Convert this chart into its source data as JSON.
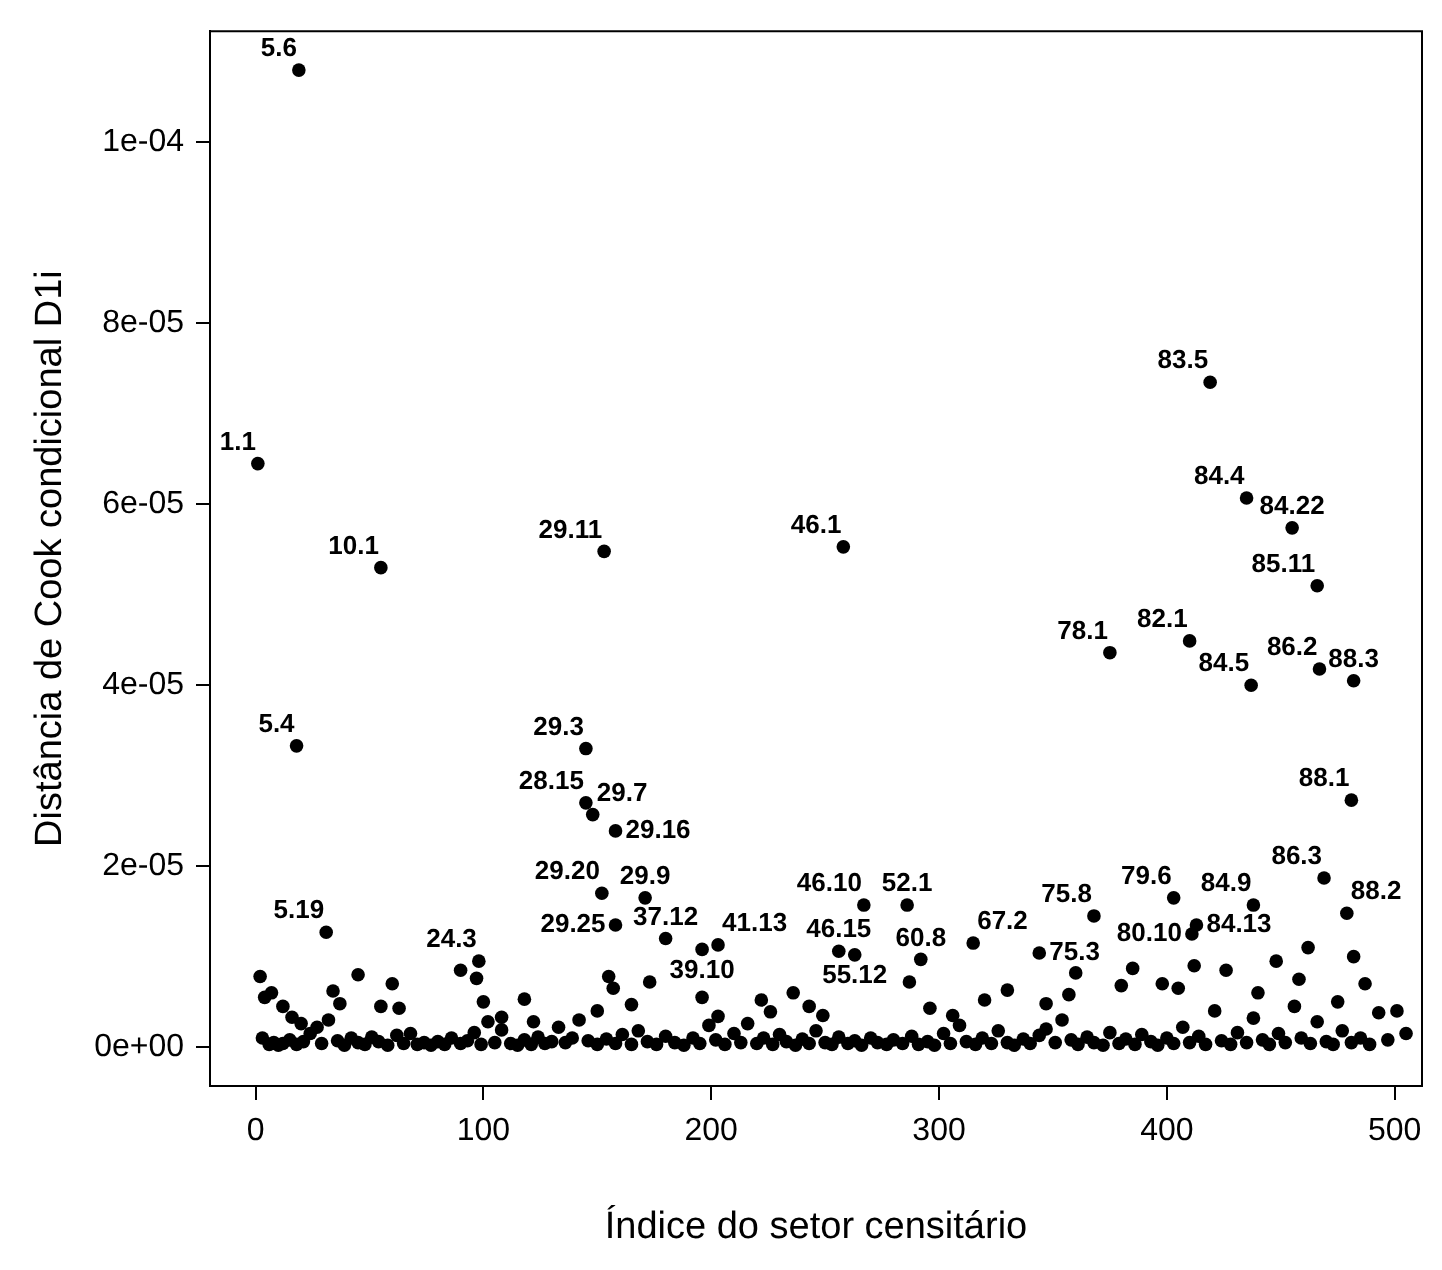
{
  "chart_data": {
    "type": "scatter",
    "xlabel": "Índice do setor censitário",
    "ylabel": "Distância de Cook condicional D1i",
    "xlim": [
      -20,
      512
    ],
    "ylim": [
      -4.3e-06,
      0.0001123
    ],
    "xticks": [
      0,
      100,
      200,
      300,
      400,
      500
    ],
    "yticks": [
      {
        "value": 0,
        "label": "0e+00"
      },
      {
        "value": 2e-05,
        "label": "2e-05"
      },
      {
        "value": 4e-05,
        "label": "4e-05"
      },
      {
        "value": 6e-05,
        "label": "6e-05"
      },
      {
        "value": 8e-05,
        "label": "8e-05"
      },
      {
        "value": 0.0001,
        "label": "1e-04"
      }
    ],
    "grid": false,
    "legend": false,
    "marker": "circle",
    "series": [
      {
        "color": "#000000",
        "x": [
          1,
          19,
          55,
          153,
          258,
          18,
          145,
          145,
          148,
          158,
          152,
          158,
          171,
          180,
          196,
          203,
          31,
          98,
          267,
          256,
          263,
          286,
          292,
          315,
          344,
          368,
          403,
          413,
          411,
          375,
          410,
          419,
          435,
          455,
          466,
          437,
          467,
          482,
          481,
          469,
          438,
          479,
          3,
          6,
          8,
          10,
          12,
          15,
          18,
          21,
          24,
          27,
          29,
          32,
          36,
          39,
          42,
          45,
          48,
          51,
          54,
          58,
          62,
          65,
          68,
          71,
          74,
          77,
          80,
          83,
          86,
          90,
          93,
          96,
          99,
          102,
          105,
          108,
          112,
          115,
          118,
          121,
          124,
          127,
          130,
          133,
          136,
          139,
          142,
          146,
          150,
          154,
          158,
          161,
          165,
          168,
          172,
          176,
          180,
          184,
          188,
          192,
          195,
          199,
          202,
          206,
          210,
          213,
          216,
          220,
          223,
          227,
          230,
          233,
          237,
          240,
          243,
          246,
          250,
          253,
          256,
          260,
          263,
          266,
          270,
          273,
          277,
          280,
          284,
          288,
          291,
          295,
          298,
          302,
          305,
          309,
          312,
          316,
          319,
          323,
          326,
          330,
          333,
          337,
          340,
          344,
          347,
          351,
          354,
          358,
          361,
          365,
          368,
          372,
          375,
          379,
          382,
          386,
          389,
          393,
          396,
          400,
          403,
          407,
          410,
          414,
          417,
          421,
          424,
          428,
          431,
          435,
          438,
          442,
          445,
          449,
          452,
          456,
          459,
          463,
          466,
          470,
          473,
          477,
          481,
          485,
          489,
          493,
          497,
          501,
          505,
          2,
          4,
          7,
          12,
          16,
          20,
          34,
          37,
          45,
          55,
          60,
          63,
          90,
          97,
          100,
          108,
          118,
          122,
          150,
          155,
          157,
          165,
          173,
          196,
          203,
          222,
          226,
          236,
          243,
          249,
          287,
          296,
          306,
          320,
          330,
          347,
          357,
          360,
          380,
          385,
          398,
          405,
          412,
          426,
          440,
          448,
          458,
          462,
          475,
          482,
          487
        ],
        "values": [
          6.45e-05,
          0.000108,
          5.3e-05,
          5.48e-05,
          5.53e-05,
          3.33e-05,
          3.3e-05,
          2.7e-05,
          2.57e-05,
          2.39e-05,
          1.7e-05,
          1.35e-05,
          1.65e-05,
          1.2e-05,
          1.08e-05,
          1.13e-05,
          1.27e-05,
          9.5e-06,
          1.57e-05,
          1.06e-05,
          1.02e-05,
          1.57e-05,
          9.7e-06,
          1.15e-05,
          1.04e-05,
          1.45e-05,
          1.65e-05,
          1.35e-05,
          1.25e-05,
          4.36e-05,
          4.49e-05,
          7.35e-05,
          6.07e-05,
          5.74e-05,
          5.1e-05,
          4e-05,
          4.18e-05,
          4.05e-05,
          2.73e-05,
          1.87e-05,
          1.57e-05,
          1.48e-05,
          1e-06,
          3e-07,
          5e-07,
          2e-07,
          4e-07,
          8e-07,
          3e-07,
          6e-07,
          1.5e-06,
          2.2e-06,
          4e-07,
          3e-06,
          7e-07,
          2e-07,
          1e-06,
          5e-07,
          3e-07,
          1.1e-06,
          6e-07,
          2e-07,
          1.3e-06,
          4e-07,
          1.5e-06,
          3e-07,
          5e-07,
          2e-07,
          6e-07,
          3e-07,
          1e-06,
          4e-07,
          7e-07,
          1.6e-06,
          3e-07,
          2.8e-06,
          5e-07,
          1.9e-06,
          4e-07,
          2e-07,
          8e-07,
          3e-07,
          1.1e-06,
          4e-07,
          6e-07,
          2.2e-06,
          5e-07,
          1e-06,
          3e-06,
          7e-07,
          3e-07,
          9e-07,
          4e-07,
          1.4e-06,
          3e-07,
          1.8e-06,
          6e-07,
          3e-07,
          1.2e-06,
          5e-07,
          2e-07,
          1e-06,
          4e-07,
          2.4e-06,
          8e-07,
          3e-07,
          1.5e-06,
          5e-07,
          2.6e-06,
          4e-07,
          1e-06,
          3e-07,
          1.4e-06,
          6e-07,
          2e-07,
          9e-07,
          4e-07,
          1.8e-06,
          5e-07,
          3e-07,
          1.1e-06,
          4e-07,
          7e-07,
          2e-07,
          1e-06,
          5e-07,
          3e-07,
          8e-07,
          4e-07,
          1.2e-06,
          3e-07,
          6e-07,
          2e-07,
          1.5e-06,
          4e-07,
          2.4e-06,
          6e-07,
          3e-07,
          1e-06,
          4e-07,
          1.8e-06,
          5e-07,
          2e-07,
          9e-07,
          4e-07,
          1.3e-06,
          2e-06,
          5e-07,
          3e-06,
          8e-07,
          3e-07,
          1.1e-06,
          5e-07,
          2e-07,
          1.6e-06,
          4e-07,
          9e-07,
          3e-07,
          1.4e-06,
          6e-07,
          2e-07,
          1e-06,
          4e-07,
          2.2e-06,
          5e-07,
          1.2e-06,
          3e-07,
          4e-06,
          7e-07,
          3e-07,
          1.6e-06,
          5e-07,
          3.2e-06,
          8e-07,
          3e-07,
          1.5e-06,
          5e-07,
          4.5e-06,
          1e-06,
          4e-07,
          2.8e-06,
          6e-07,
          3e-07,
          1.8e-06,
          5e-07,
          1e-06,
          3e-07,
          3.8e-06,
          8e-07,
          4e-06,
          1.5e-06,
          7.8e-06,
          5.5e-06,
          6e-06,
          4.5e-06,
          3.3e-06,
          2.6e-06,
          6.2e-06,
          4.8e-06,
          8e-06,
          4.5e-06,
          7e-06,
          4.3e-06,
          8.5e-06,
          7.6e-06,
          5e-06,
          3.3e-06,
          5.3e-06,
          2.8e-06,
          4e-06,
          7.8e-06,
          6.5e-06,
          4.7e-06,
          7.2e-06,
          5.5e-06,
          3.4e-06,
          5.2e-06,
          3.9e-06,
          6e-06,
          4.5e-06,
          3.5e-06,
          7.2e-06,
          4.3e-06,
          3.5e-06,
          5.2e-06,
          6.3e-06,
          4.8e-06,
          5.8e-06,
          8.2e-06,
          6.8e-06,
          8.7e-06,
          7e-06,
          6.5e-06,
          9e-06,
          8.5e-06,
          6e-06,
          9.5e-06,
          7.5e-06,
          1.1e-05,
          5e-06,
          1e-05,
          7e-06
        ]
      }
    ],
    "annotations": [
      {
        "text": "1.1",
        "x": 1,
        "y": 6.45e-05
      },
      {
        "text": "5.6",
        "x": 19,
        "y": 0.000108
      },
      {
        "text": "10.1",
        "x": 55,
        "y": 5.3e-05
      },
      {
        "text": "29.11",
        "x": 153,
        "y": 5.48e-05
      },
      {
        "text": "46.1",
        "x": 258,
        "y": 5.53e-05
      },
      {
        "text": "5.4",
        "x": 18,
        "y": 3.33e-05
      },
      {
        "text": "29.3",
        "x": 145,
        "y": 3.3e-05
      },
      {
        "text": "28.15",
        "x": 145,
        "y": 2.7e-05
      },
      {
        "text": "29.7",
        "x": 148,
        "y": 2.57e-05
      },
      {
        "text": "29.16",
        "x": 158,
        "y": 2.39e-05
      },
      {
        "text": "29.20",
        "x": 152,
        "y": 1.7e-05
      },
      {
        "text": "29.25",
        "x": 158,
        "y": 1.35e-05
      },
      {
        "text": "29.9",
        "x": 171,
        "y": 1.65e-05
      },
      {
        "text": "37.12",
        "x": 180,
        "y": 1.2e-05
      },
      {
        "text": "39.10",
        "x": 196,
        "y": 1.08e-05
      },
      {
        "text": "41.13",
        "x": 203,
        "y": 1.13e-05
      },
      {
        "text": "5.19",
        "x": 31,
        "y": 1.27e-05
      },
      {
        "text": "24.3",
        "x": 98,
        "y": 9.5e-06
      },
      {
        "text": "46.10",
        "x": 267,
        "y": 1.57e-05
      },
      {
        "text": "46.15",
        "x": 256,
        "y": 1.06e-05
      },
      {
        "text": "55.12",
        "x": 263,
        "y": 1.02e-05
      },
      {
        "text": "52.1",
        "x": 286,
        "y": 1.57e-05
      },
      {
        "text": "60.8",
        "x": 292,
        "y": 9.7e-06
      },
      {
        "text": "67.2",
        "x": 315,
        "y": 1.15e-05
      },
      {
        "text": "75.3",
        "x": 344,
        "y": 1.04e-05
      },
      {
        "text": "75.8",
        "x": 368,
        "y": 1.45e-05
      },
      {
        "text": "79.6",
        "x": 403,
        "y": 1.65e-05
      },
      {
        "text": "84.13",
        "x": 413,
        "y": 1.35e-05
      },
      {
        "text": "80.10",
        "x": 411,
        "y": 1.25e-05
      },
      {
        "text": "78.1",
        "x": 375,
        "y": 4.36e-05
      },
      {
        "text": "82.1",
        "x": 410,
        "y": 4.49e-05
      },
      {
        "text": "83.5",
        "x": 419,
        "y": 7.35e-05
      },
      {
        "text": "84.4",
        "x": 435,
        "y": 6.07e-05
      },
      {
        "text": "84.22",
        "x": 455,
        "y": 5.74e-05
      },
      {
        "text": "85.11",
        "x": 466,
        "y": 5.1e-05
      },
      {
        "text": "84.5",
        "x": 437,
        "y": 4e-05
      },
      {
        "text": "86.2",
        "x": 467,
        "y": 4.18e-05
      },
      {
        "text": "88.3",
        "x": 482,
        "y": 4.05e-05
      },
      {
        "text": "88.1",
        "x": 481,
        "y": 2.73e-05
      },
      {
        "text": "86.3",
        "x": 469,
        "y": 1.87e-05
      },
      {
        "text": "84.9",
        "x": 438,
        "y": 1.57e-05
      },
      {
        "text": "88.2",
        "x": 479,
        "y": 1.48e-05
      }
    ]
  }
}
